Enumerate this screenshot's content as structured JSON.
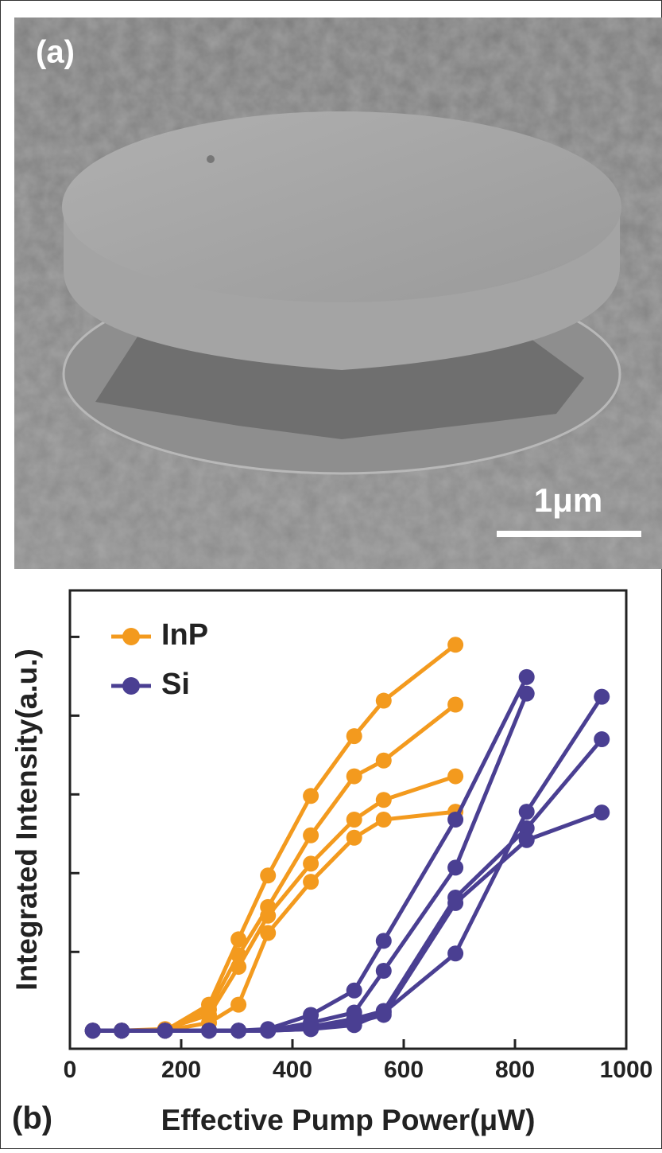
{
  "panel_a": {
    "label": "(a)",
    "scale_bar": "1μm"
  },
  "chart_data": {
    "type": "line",
    "panel_label": "(b)",
    "x_label": "Effective Pump Power(μW)",
    "y_label": "Integrated Intensity(a.u.)",
    "x": [
      41,
      93,
      171,
      250,
      303,
      356,
      433,
      511,
      564,
      693,
      821,
      956
    ],
    "xlim": [
      0,
      1000
    ],
    "xticks": [
      0,
      200,
      400,
      600,
      800,
      1000
    ],
    "ylim": [
      -0.23,
      5.59
    ],
    "yticks": [
      1,
      2,
      3,
      4,
      5
    ],
    "series": [
      {
        "name": "InP",
        "color": "#f39a1e",
        "values": [
          0,
          0,
          0,
          0.33,
          1.16,
          1.97,
          2.98,
          3.74,
          4.19,
          4.9,
          null,
          null
        ]
      },
      {
        "name": "InP",
        "color": "#f39a1e",
        "values": [
          0,
          0,
          0,
          0.27,
          0.96,
          1.57,
          2.48,
          3.23,
          3.43,
          4.14,
          null,
          null
        ]
      },
      {
        "name": "InP",
        "color": "#f39a1e",
        "values": [
          0,
          0,
          0.02,
          0.2,
          0.81,
          1.46,
          2.12,
          2.68,
          2.93,
          3.23,
          null,
          null
        ]
      },
      {
        "name": "InP",
        "color": "#f39a1e",
        "values": [
          0,
          0,
          0,
          0.1,
          0.33,
          1.24,
          1.89,
          2.45,
          2.68,
          2.78,
          null,
          null
        ]
      },
      {
        "name": "Si",
        "color": "#4a3f92",
        "values": [
          0,
          0,
          0,
          0,
          0,
          0.02,
          0.2,
          0.51,
          1.14,
          2.68,
          4.49,
          null
        ]
      },
      {
        "name": "Si",
        "color": "#4a3f92",
        "values": [
          0,
          0,
          0,
          0,
          0,
          0,
          0.1,
          0.23,
          0.76,
          2.07,
          4.28,
          null
        ]
      },
      {
        "name": "Si",
        "color": "#4a3f92",
        "values": [
          0,
          0,
          0,
          0,
          0,
          0,
          0.05,
          0.15,
          0.25,
          1.69,
          2.57,
          3.7
        ]
      },
      {
        "name": "Si",
        "color": "#4a3f92",
        "values": [
          0,
          0,
          0,
          0,
          0,
          0,
          0.02,
          0.07,
          0.23,
          0.98,
          2.78,
          4.24
        ]
      },
      {
        "name": "Si",
        "color": "#4a3f92",
        "values": [
          0,
          0,
          0,
          0,
          0,
          0,
          0.02,
          0.1,
          0.2,
          1.62,
          2.42,
          2.77
        ]
      }
    ]
  }
}
